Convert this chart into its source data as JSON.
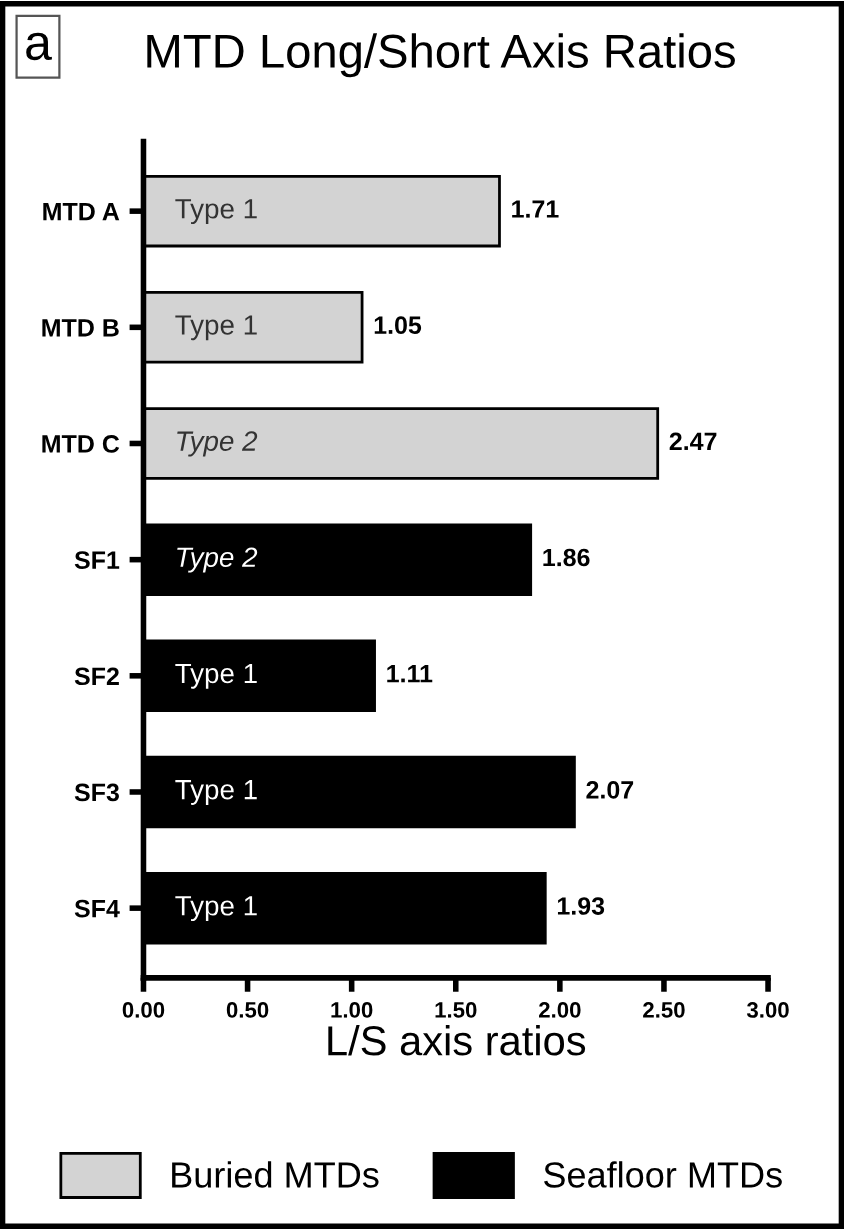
{
  "chart_data": {
    "type": "bar",
    "orientation": "horizontal",
    "title": "MTD Long/Short Axis Ratios",
    "xlabel": "L/S axis ratios",
    "categories": [
      "MTD A",
      "MTD B",
      "MTD C",
      "SF1",
      "SF2",
      "SF3",
      "SF4"
    ],
    "series": [
      {
        "name": "Buried MTDs",
        "color": "#d3d3d3",
        "values": [
          1.71,
          1.05,
          2.47,
          null,
          null,
          null,
          null
        ]
      },
      {
        "name": "Seafloor MTDs",
        "color": "#000000",
        "values": [
          null,
          null,
          null,
          1.86,
          1.11,
          2.07,
          1.93
        ]
      }
    ],
    "xlim": [
      0,
      3
    ],
    "xticks": [
      {
        "value": 0,
        "label": "0.00"
      },
      {
        "value": 0.5,
        "label": "0.50"
      },
      {
        "value": 1,
        "label": "1.00"
      },
      {
        "value": 1.5,
        "label": "1.50"
      },
      {
        "value": 2,
        "label": "2.00"
      },
      {
        "value": 2.5,
        "label": "2.50"
      },
      {
        "value": 3,
        "label": "3.00"
      }
    ],
    "data_labels": true,
    "grid": false,
    "legend": "bottom",
    "annotations": [
      "a",
      "Type 1",
      "Type 1",
      "Type 2",
      "Type 2",
      "Type 1",
      "Type 1",
      "Type 1"
    ]
  }
}
